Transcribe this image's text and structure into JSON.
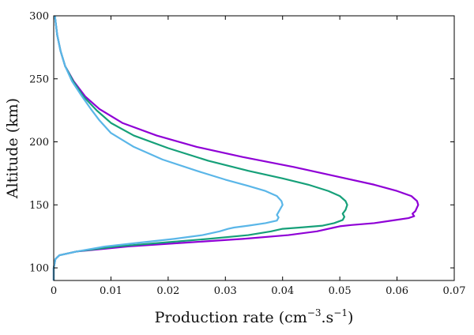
{
  "chart_data": {
    "type": "line",
    "title": "",
    "xlabel": "Production rate (cm",
    "xlabel_sup1": "−3",
    "xlabel_mid": ".s",
    "xlabel_sup2": "−1",
    "xlabel_end": ")",
    "ylabel": "Altitude (km)",
    "xlim": [
      0,
      0.07
    ],
    "ylim": [
      90,
      300
    ],
    "xticks": [
      0,
      0.01,
      0.02,
      0.03,
      0.04,
      0.05,
      0.06,
      0.07
    ],
    "xtick_labels": [
      "0",
      "0.01",
      "0.02",
      "0.03",
      "0.04",
      "0.05",
      "0.06",
      "0.07"
    ],
    "yticks": [
      100,
      150,
      200,
      250,
      300
    ],
    "ytick_labels": [
      "100",
      "150",
      "200",
      "250",
      "300"
    ],
    "grid": false,
    "legend": "none",
    "series": [
      {
        "color": "#8f00d6",
        "points": [
          [
            0.0,
            90
          ],
          [
            0.0,
            100
          ],
          [
            0.0003,
            107
          ],
          [
            0.001,
            110
          ],
          [
            0.004,
            113
          ],
          [
            0.013,
            117
          ],
          [
            0.023,
            120
          ],
          [
            0.033,
            123
          ],
          [
            0.041,
            126
          ],
          [
            0.046,
            129
          ],
          [
            0.049,
            132
          ],
          [
            0.05,
            133
          ],
          [
            0.052,
            134
          ],
          [
            0.056,
            135.5
          ],
          [
            0.059,
            137.5
          ],
          [
            0.062,
            139.5
          ],
          [
            0.063,
            141
          ],
          [
            0.0627,
            143
          ],
          [
            0.0632,
            145
          ],
          [
            0.0637,
            150
          ],
          [
            0.0635,
            153
          ],
          [
            0.0625,
            157
          ],
          [
            0.06,
            161
          ],
          [
            0.056,
            166
          ],
          [
            0.05,
            172
          ],
          [
            0.042,
            180
          ],
          [
            0.033,
            188
          ],
          [
            0.025,
            196
          ],
          [
            0.018,
            205
          ],
          [
            0.012,
            215
          ],
          [
            0.008,
            226
          ],
          [
            0.0055,
            236
          ],
          [
            0.0035,
            248
          ],
          [
            0.002,
            260
          ],
          [
            0.0012,
            272
          ],
          [
            0.0006,
            285
          ],
          [
            0.0002,
            300
          ]
        ]
      },
      {
        "color": "#16a079",
        "points": [
          [
            0.0,
            90
          ],
          [
            0.0,
            100
          ],
          [
            0.0003,
            107
          ],
          [
            0.001,
            110
          ],
          [
            0.004,
            113
          ],
          [
            0.011,
            117
          ],
          [
            0.019,
            120
          ],
          [
            0.027,
            123
          ],
          [
            0.034,
            126
          ],
          [
            0.038,
            129
          ],
          [
            0.04,
            131
          ],
          [
            0.043,
            132
          ],
          [
            0.047,
            133.5
          ],
          [
            0.049,
            135.5
          ],
          [
            0.0505,
            138
          ],
          [
            0.0508,
            140.5
          ],
          [
            0.0505,
            143
          ],
          [
            0.051,
            146
          ],
          [
            0.0513,
            150
          ],
          [
            0.051,
            153
          ],
          [
            0.05,
            157
          ],
          [
            0.048,
            161
          ],
          [
            0.0445,
            166
          ],
          [
            0.04,
            171
          ],
          [
            0.034,
            177
          ],
          [
            0.027,
            185
          ],
          [
            0.02,
            195
          ],
          [
            0.014,
            205
          ],
          [
            0.01,
            215
          ],
          [
            0.0075,
            225
          ],
          [
            0.0052,
            236
          ],
          [
            0.0034,
            248
          ],
          [
            0.002,
            260
          ],
          [
            0.0012,
            272
          ],
          [
            0.0006,
            285
          ],
          [
            0.0002,
            300
          ]
        ]
      },
      {
        "color": "#5ab6e8",
        "points": [
          [
            0.0,
            90
          ],
          [
            0.0,
            100
          ],
          [
            0.0003,
            107
          ],
          [
            0.001,
            110
          ],
          [
            0.004,
            113
          ],
          [
            0.009,
            117
          ],
          [
            0.015,
            120
          ],
          [
            0.021,
            123
          ],
          [
            0.026,
            126
          ],
          [
            0.029,
            129
          ],
          [
            0.0305,
            131
          ],
          [
            0.0315,
            132
          ],
          [
            0.034,
            133.5
          ],
          [
            0.037,
            135.5
          ],
          [
            0.039,
            137.5
          ],
          [
            0.0393,
            140
          ],
          [
            0.039,
            142
          ],
          [
            0.0395,
            146
          ],
          [
            0.04,
            150
          ],
          [
            0.0398,
            153
          ],
          [
            0.039,
            157
          ],
          [
            0.037,
            161
          ],
          [
            0.034,
            165
          ],
          [
            0.03,
            170
          ],
          [
            0.025,
            177
          ],
          [
            0.019,
            186
          ],
          [
            0.014,
            196
          ],
          [
            0.01,
            207
          ],
          [
            0.008,
            217
          ],
          [
            0.0065,
            226
          ],
          [
            0.0048,
            237
          ],
          [
            0.0032,
            248
          ],
          [
            0.002,
            260
          ],
          [
            0.0012,
            272
          ],
          [
            0.0006,
            285
          ],
          [
            0.0002,
            300
          ]
        ]
      }
    ]
  }
}
